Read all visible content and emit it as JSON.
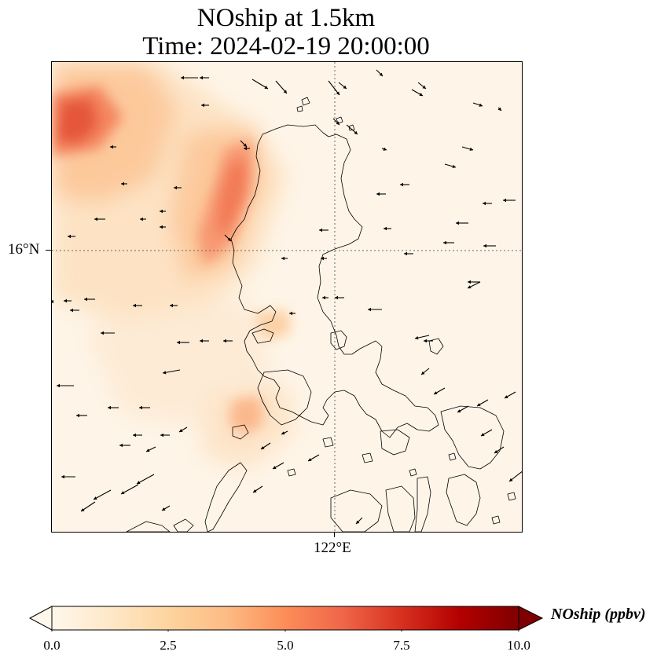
{
  "title_line1": "NOship at 1.5km",
  "title_line2": "Time: 2024-02-19 20:00:00",
  "axes": {
    "lat_label": "16°N",
    "lon_label": "122°E"
  },
  "colorbar": {
    "label": "NOship (ppbv)",
    "min": 0.0,
    "max": 10.0,
    "ticks": [
      "0.0",
      "2.5",
      "5.0",
      "7.5",
      "10.0"
    ],
    "extend": "both",
    "colormap": [
      "#fff7ec",
      "#fee8c8",
      "#fdd49e",
      "#fdbb84",
      "#fc8d59",
      "#ef6548",
      "#d7301f",
      "#b30000",
      "#7f0000"
    ]
  },
  "colors": {
    "land_outline": "#000000",
    "gridline": "#555555",
    "wind_arrow": "#000000"
  }
}
